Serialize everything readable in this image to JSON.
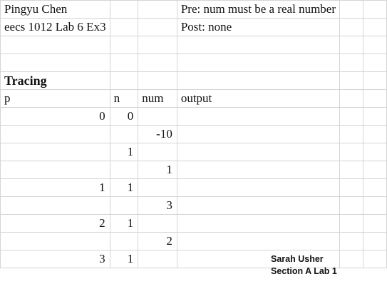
{
  "header": {
    "name": "Pingyu Chen",
    "lab": "eecs 1012 Lab 6 Ex3",
    "pre": "Pre: num must be a real number",
    "post": "Post: none"
  },
  "tracing": {
    "title": "Tracing",
    "columns": [
      "p",
      "n",
      "num",
      "output"
    ],
    "rows": [
      {
        "p": "0",
        "n": "0",
        "num": "",
        "output": ""
      },
      {
        "p": "",
        "n": "",
        "num": "-10",
        "output": ""
      },
      {
        "p": "",
        "n": "1",
        "num": "",
        "output": ""
      },
      {
        "p": "",
        "n": "",
        "num": "1",
        "output": ""
      },
      {
        "p": "1",
        "n": "1",
        "num": "",
        "output": ""
      },
      {
        "p": "",
        "n": "",
        "num": "3",
        "output": ""
      },
      {
        "p": "2",
        "n": "1",
        "num": "",
        "output": ""
      },
      {
        "p": "",
        "n": "",
        "num": "2",
        "output": ""
      },
      {
        "p": "3",
        "n": "1",
        "num": "",
        "output": ""
      }
    ]
  },
  "note": {
    "line1": "Sarah Usher",
    "line2": "Section A Lab 1"
  },
  "colors": {
    "grid": "#d4d4d4",
    "text": "#111111",
    "background": "#ffffff"
  }
}
